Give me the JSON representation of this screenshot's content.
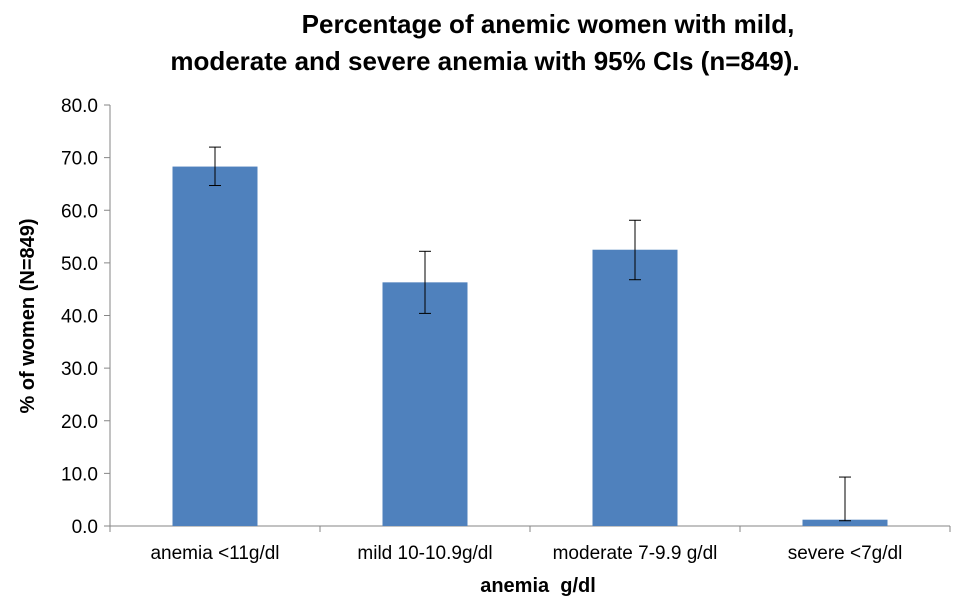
{
  "chart_data": {
    "type": "bar",
    "title_lines": [
      "Percentage of anemic women with mild,",
      "moderate and severe anemia with 95% CIs (n=849)."
    ],
    "xlabel": "anemia  g/dl",
    "ylabel": "% of women (N=849)",
    "categories": [
      "anemia <11g/dl",
      "mild 10-10.9g/dl",
      "moderate 7-9.9 g/dl",
      "severe <7g/dl"
    ],
    "values": [
      68.3,
      46.3,
      52.5,
      1.2
    ],
    "error_low": [
      64.7,
      40.4,
      46.8,
      1.0
    ],
    "error_high": [
      72.0,
      52.2,
      58.1,
      9.3
    ],
    "ylim": [
      0,
      80
    ],
    "yticks": [
      "0.0",
      "10.0",
      "20.0",
      "30.0",
      "40.0",
      "50.0",
      "60.0",
      "70.0",
      "80.0"
    ],
    "grid": false,
    "legend": "none",
    "bar_color": "#4f81bd",
    "axis_color": "#868686"
  }
}
